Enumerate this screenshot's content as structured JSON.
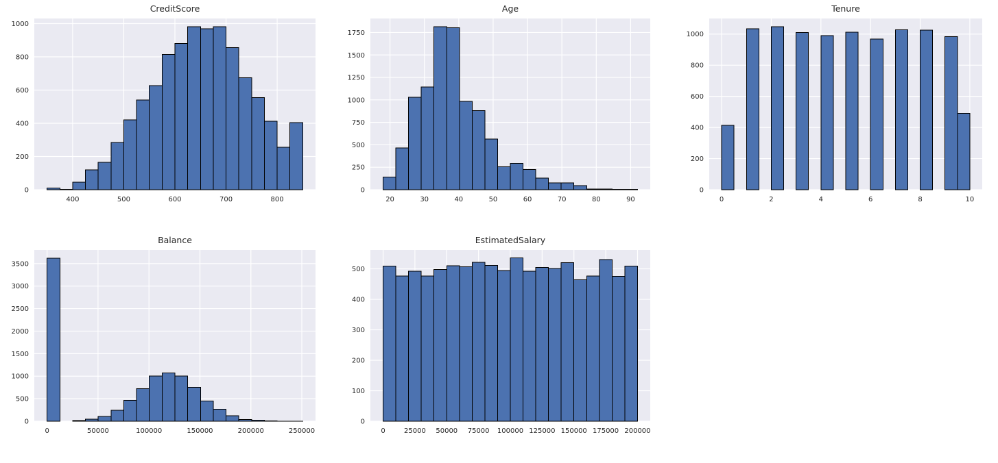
{
  "figure": {
    "kind": "histogram-grid",
    "rows": 2,
    "cols": 3,
    "empty_cells": 1
  },
  "colors": {
    "bar_fill": "#4c72b0",
    "bar_edge": "#000000",
    "plot_background": "#eaeaf2",
    "gridline": "#ffffff",
    "text": "#262626",
    "figure_background": "#ffffff"
  },
  "chart_data": [
    {
      "type": "bar",
      "title": "CreditScore",
      "xlabel": "",
      "ylabel": "",
      "grid": true,
      "legend": false,
      "xlim": [
        325,
        875
      ],
      "ylim": [
        0,
        1031
      ],
      "x_ticks": [
        400,
        500,
        600,
        700,
        800
      ],
      "x_tick_labels": [
        "400",
        "500",
        "600",
        "700",
        "800"
      ],
      "y_ticks": [
        0,
        200,
        400,
        600,
        800,
        1000
      ],
      "y_tick_labels": [
        "0",
        "200",
        "400",
        "600",
        "800",
        "1000"
      ],
      "bars": [
        [
          350,
          375,
          10
        ],
        [
          375,
          400,
          2
        ],
        [
          400,
          425,
          45
        ],
        [
          425,
          450,
          120
        ],
        [
          450,
          475,
          165
        ],
        [
          475,
          500,
          285
        ],
        [
          500,
          525,
          420
        ],
        [
          525,
          550,
          540
        ],
        [
          550,
          575,
          627
        ],
        [
          575,
          600,
          815
        ],
        [
          600,
          625,
          880
        ],
        [
          625,
          650,
          982
        ],
        [
          650,
          675,
          970
        ],
        [
          675,
          700,
          982
        ],
        [
          700,
          725,
          855
        ],
        [
          725,
          750,
          675
        ],
        [
          750,
          775,
          555
        ],
        [
          775,
          800,
          412
        ],
        [
          800,
          825,
          255
        ],
        [
          825,
          850,
          405
        ]
      ]
    },
    {
      "type": "bar",
      "title": "Age",
      "xlabel": "",
      "ylabel": "",
      "grid": true,
      "legend": false,
      "xlim": [
        14.3,
        95.7
      ],
      "ylim": [
        0,
        1906
      ],
      "x_ticks": [
        20,
        30,
        40,
        50,
        60,
        70,
        80,
        90
      ],
      "x_tick_labels": [
        "20",
        "30",
        "40",
        "50",
        "60",
        "70",
        "80",
        "90"
      ],
      "y_ticks": [
        0,
        250,
        500,
        750,
        1000,
        1250,
        1500,
        1750
      ],
      "y_tick_labels": [
        "0",
        "250",
        "500",
        "750",
        "1000",
        "1250",
        "1500",
        "1750"
      ],
      "bars": [
        [
          18,
          21.7,
          140
        ],
        [
          21.7,
          25.4,
          465
        ],
        [
          25.4,
          29.1,
          1030
        ],
        [
          29.1,
          32.8,
          1145
        ],
        [
          32.8,
          36.5,
          1815
        ],
        [
          36.5,
          40.2,
          1805
        ],
        [
          40.2,
          43.9,
          985
        ],
        [
          43.9,
          47.6,
          880
        ],
        [
          47.6,
          51.3,
          565
        ],
        [
          51.3,
          55.0,
          255
        ],
        [
          55.0,
          58.7,
          295
        ],
        [
          58.7,
          62.4,
          225
        ],
        [
          62.4,
          66.1,
          130
        ],
        [
          66.1,
          69.8,
          75
        ],
        [
          69.8,
          73.5,
          75
        ],
        [
          73.5,
          77.2,
          45
        ],
        [
          77.2,
          80.9,
          8
        ],
        [
          80.9,
          84.6,
          8
        ],
        [
          84.6,
          88.3,
          2
        ],
        [
          88.3,
          92.0,
          2
        ]
      ]
    },
    {
      "type": "bar",
      "title": "Tenure",
      "xlabel": "",
      "ylabel": "",
      "grid": true,
      "legend": false,
      "xlim": [
        -0.5,
        10.5
      ],
      "ylim": [
        0,
        1100
      ],
      "x_ticks": [
        0,
        2,
        4,
        6,
        8,
        10
      ],
      "x_tick_labels": [
        "0",
        "2",
        "4",
        "6",
        "8",
        "10"
      ],
      "y_ticks": [
        0,
        200,
        400,
        600,
        800,
        1000
      ],
      "y_tick_labels": [
        "0",
        "200",
        "400",
        "600",
        "800",
        "1000"
      ],
      "bars": [
        [
          0,
          0.5,
          413
        ],
        [
          1,
          1.5,
          1035
        ],
        [
          2,
          2.5,
          1048
        ],
        [
          3,
          3.5,
          1009
        ],
        [
          4,
          4.5,
          989
        ],
        [
          5,
          5.5,
          1012
        ],
        [
          6,
          6.5,
          967
        ],
        [
          7,
          7.5,
          1028
        ],
        [
          8,
          8.5,
          1025
        ],
        [
          9,
          9.5,
          984
        ],
        [
          9.5,
          10,
          490
        ]
      ]
    },
    {
      "type": "bar",
      "title": "Balance",
      "xlabel": "",
      "ylabel": "",
      "grid": true,
      "legend": false,
      "xlim": [
        -12545,
        263443
      ],
      "ylim": [
        0,
        3801
      ],
      "x_ticks": [
        0,
        50000,
        100000,
        150000,
        200000,
        250000
      ],
      "x_tick_labels": [
        "0",
        "50000",
        "100000",
        "150000",
        "200000",
        "250000"
      ],
      "y_ticks": [
        0,
        500,
        1000,
        1500,
        2000,
        2500,
        3000,
        3500
      ],
      "y_tick_labels": [
        "0",
        "500",
        "1000",
        "1500",
        "2000",
        "2500",
        "3000",
        "3500"
      ],
      "bars": [
        [
          0,
          12545,
          3620
        ],
        [
          12545,
          25090,
          0
        ],
        [
          25090,
          37635,
          15
        ],
        [
          37635,
          50180,
          45
        ],
        [
          50180,
          62725,
          110
        ],
        [
          62725,
          75270,
          240
        ],
        [
          75270,
          87815,
          460
        ],
        [
          87815,
          100360,
          720
        ],
        [
          100360,
          112905,
          1000
        ],
        [
          112905,
          125450,
          1070
        ],
        [
          125450,
          137995,
          1000
        ],
        [
          137995,
          150540,
          755
        ],
        [
          150540,
          163085,
          445
        ],
        [
          163085,
          175630,
          265
        ],
        [
          175630,
          188175,
          125
        ],
        [
          188175,
          200720,
          40
        ],
        [
          200720,
          213265,
          25
        ],
        [
          213265,
          225810,
          8
        ],
        [
          225810,
          238355,
          2
        ],
        [
          238355,
          250900,
          1
        ]
      ]
    },
    {
      "type": "bar",
      "title": "EstimatedSalary",
      "xlabel": "",
      "ylabel": "",
      "grid": true,
      "legend": false,
      "xlim": [
        -10000,
        210000
      ],
      "ylim": [
        0,
        562
      ],
      "x_ticks": [
        0,
        25000,
        50000,
        75000,
        100000,
        125000,
        150000,
        175000,
        200000
      ],
      "x_tick_labels": [
        "0",
        "25000",
        "50000",
        "75000",
        "100000",
        "125000",
        "150000",
        "175000",
        "200000"
      ],
      "y_ticks": [
        0,
        100,
        200,
        300,
        400,
        500
      ],
      "y_tick_labels": [
        "0",
        "100",
        "200",
        "300",
        "400",
        "500"
      ],
      "bars": [
        [
          0,
          10000,
          509
        ],
        [
          10000,
          20000,
          477
        ],
        [
          20000,
          30000,
          492
        ],
        [
          30000,
          40000,
          477
        ],
        [
          40000,
          50000,
          498
        ],
        [
          50000,
          60000,
          510
        ],
        [
          60000,
          70000,
          507
        ],
        [
          70000,
          80000,
          521
        ],
        [
          80000,
          90000,
          511
        ],
        [
          90000,
          100000,
          495
        ],
        [
          100000,
          110000,
          536
        ],
        [
          110000,
          120000,
          492
        ],
        [
          120000,
          130000,
          505
        ],
        [
          130000,
          140000,
          501
        ],
        [
          140000,
          150000,
          520
        ],
        [
          150000,
          160000,
          464
        ],
        [
          160000,
          170000,
          477
        ],
        [
          170000,
          180000,
          531
        ],
        [
          180000,
          190000,
          475
        ],
        [
          190000,
          200000,
          509
        ]
      ]
    }
  ]
}
